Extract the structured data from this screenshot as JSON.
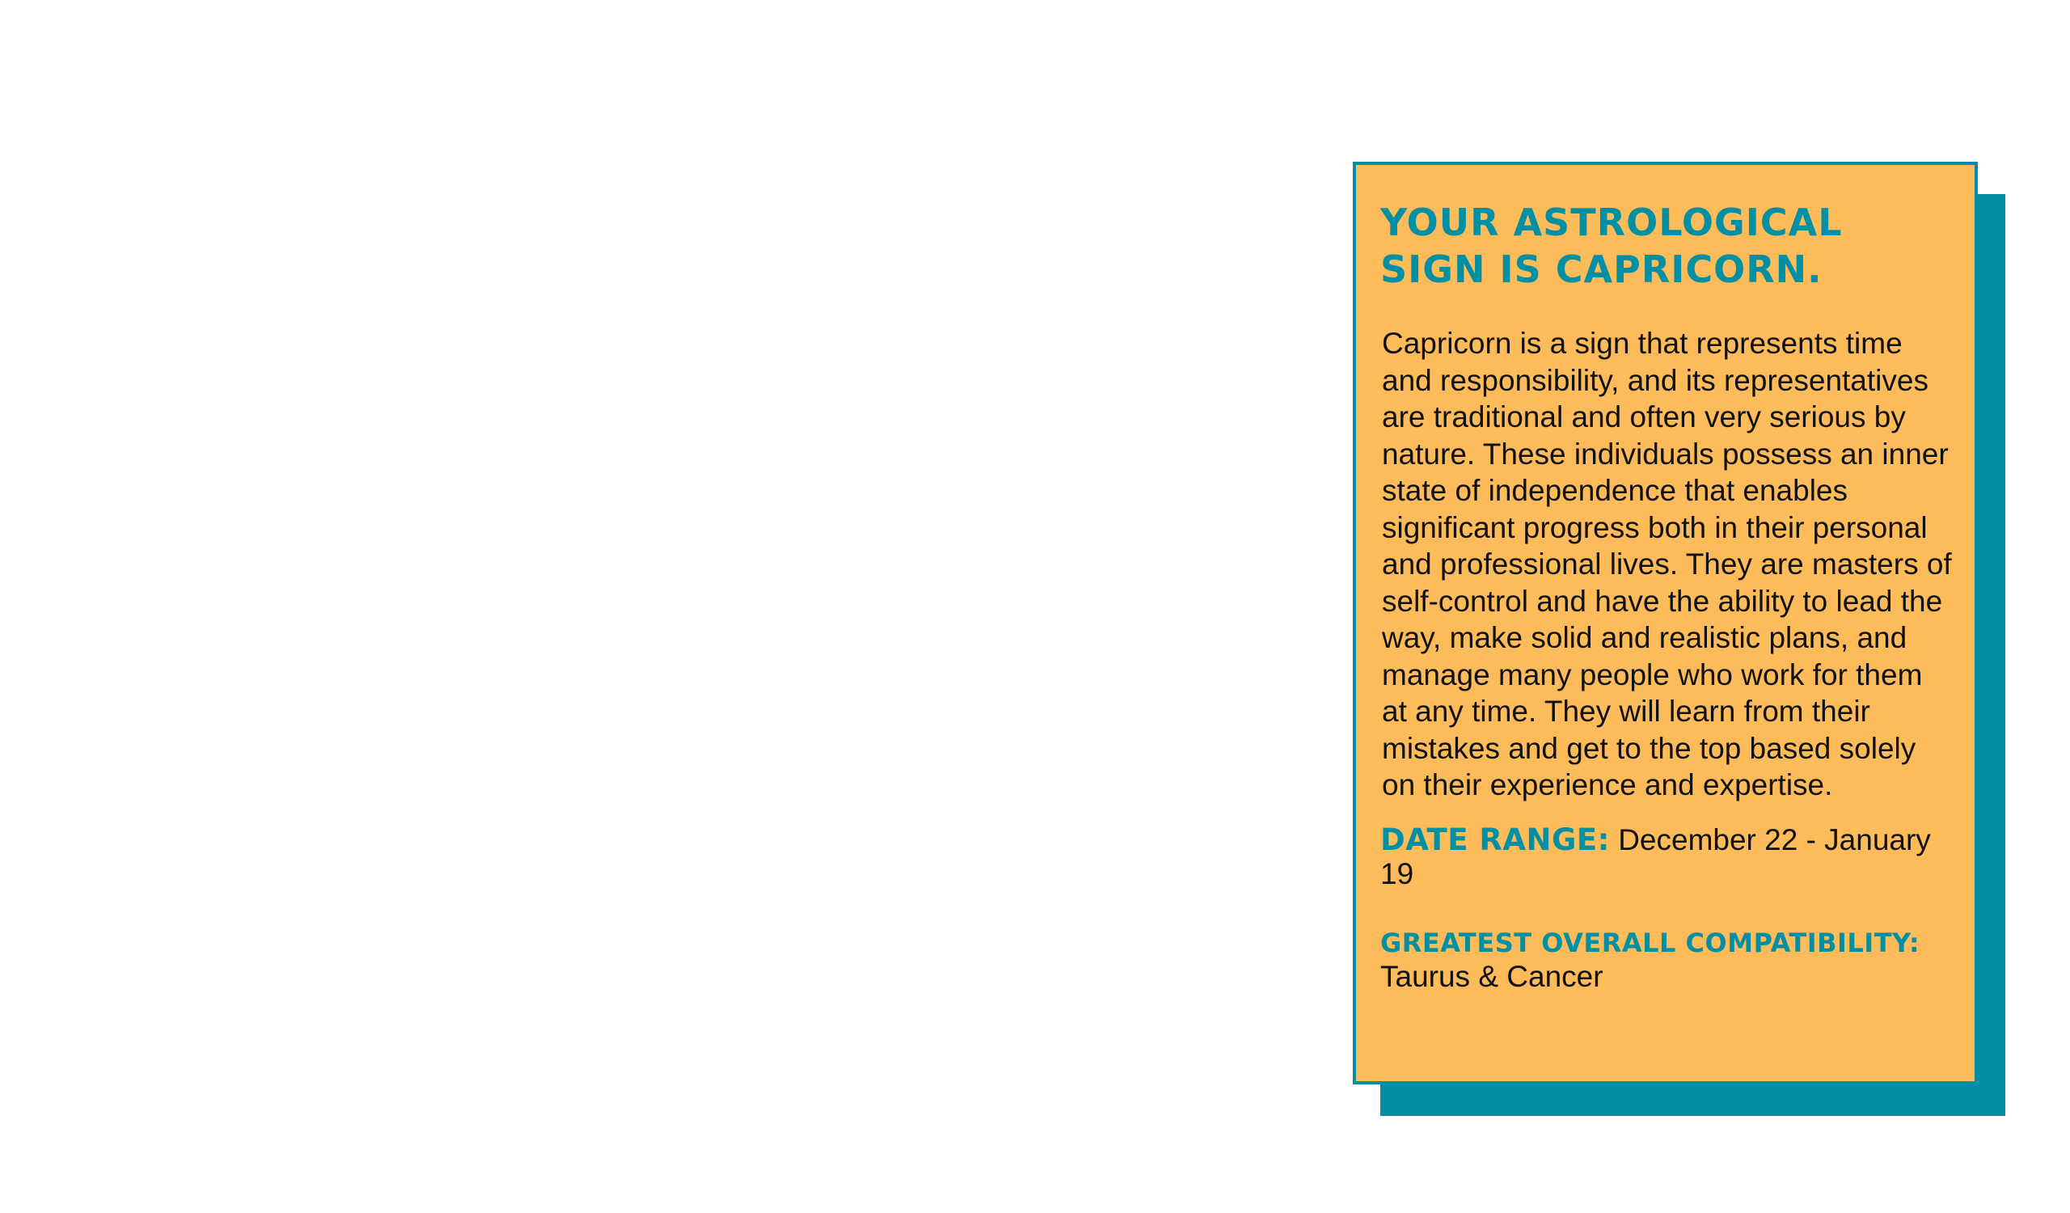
{
  "card": {
    "title": "Your astrological sign is Capricorn.",
    "description": "Capricorn is a sign that represents time and responsibility, and its representatives are traditional and often very serious by nature. These individuals possess an inner state of independence that enables significant progress both in their personal and professional lives. They are masters of self-control and have the ability to lead the way, make solid and realistic plans, and manage many people who work for them at any time. They will learn from their mistakes and get to the top based solely on their experience and expertise.",
    "date_range_label": "Date range:",
    "date_range_value": "December 22 - January 19",
    "compatibility_label": "Greatest overall compatibility:",
    "compatibility_value": "Taurus & Cancer"
  },
  "colors": {
    "card_background": "#fdbb59",
    "accent": "#008fa3",
    "text": "#111111",
    "page_background": "#ffffff"
  }
}
